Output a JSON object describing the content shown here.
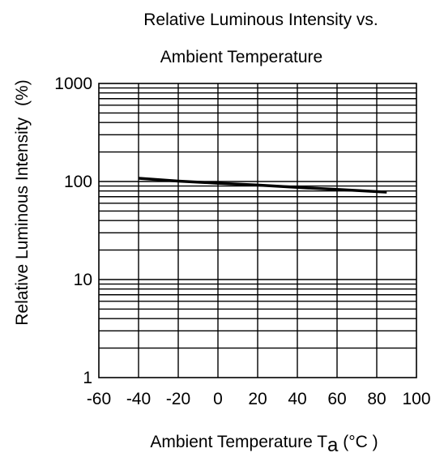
{
  "chart_data": {
    "type": "line",
    "title": {
      "line1": "Relative Luminous Intensity vs.",
      "line2": "Ambient Temperature"
    },
    "xlabel": {
      "text": "Ambient Temperature T",
      "subscript": "a",
      "unit": " (°C )"
    },
    "ylabel": {
      "text": "Relative Luminous Intensity",
      "unit": "(%)"
    },
    "xlim": [
      -60,
      100
    ],
    "ylim": [
      1,
      1000
    ],
    "yscale": "log",
    "grid": true,
    "x_ticks": [
      -60,
      -40,
      -20,
      0,
      20,
      40,
      60,
      80,
      100
    ],
    "x_tick_labels": [
      "-60",
      "-40",
      "-20",
      "0",
      "20",
      "40",
      "60",
      "80",
      "100"
    ],
    "y_ticks": [
      1,
      10,
      100,
      1000
    ],
    "y_tick_labels": [
      "1",
      "10",
      "100",
      "1000"
    ],
    "series": [
      {
        "x": [
          -40,
          -20,
          0,
          20,
          40,
          60,
          85
        ],
        "y": [
          108,
          101,
          96,
          92,
          87,
          83,
          78
        ]
      }
    ]
  }
}
